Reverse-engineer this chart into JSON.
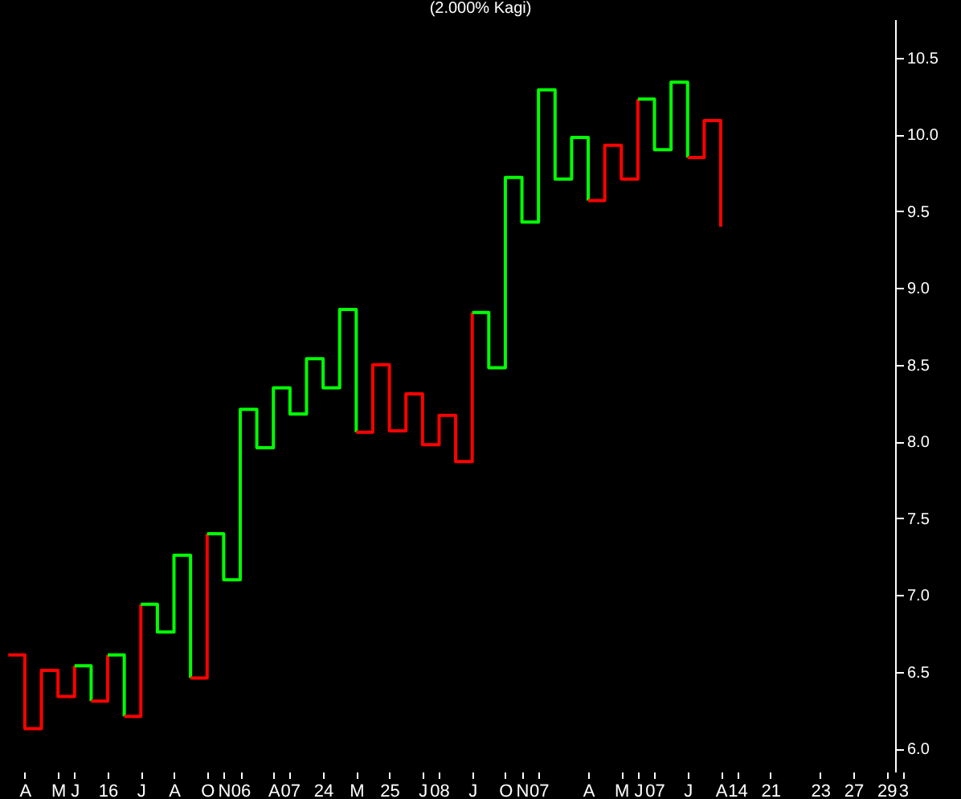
{
  "chart_data": {
    "type": "step",
    "title": "(2.000% Kagi)",
    "categories": [
      null,
      "A",
      null,
      "M",
      "J",
      null,
      "16",
      null,
      "J",
      null,
      "A",
      null,
      "O",
      "N",
      "06",
      null,
      "A",
      "07",
      null,
      "24",
      null,
      "M",
      null,
      "25",
      null,
      "J",
      "08",
      null,
      "J",
      null,
      "O",
      "N",
      "07",
      null,
      null,
      "A",
      null,
      "M",
      "J",
      "07",
      null,
      "J",
      null,
      "A",
      "14",
      null,
      "21",
      null,
      null,
      "23",
      null,
      "27",
      null,
      "29",
      "3",
      null,
      null,
      null
    ],
    "series": [
      {
        "color": "#ff0000",
        "values": [
          6.61,
          6.13,
          6.51,
          6.34,
          6.54,
          null,
          null,
          null,
          null,
          null,
          null,
          null,
          null,
          null,
          null,
          null,
          null,
          null,
          null,
          null,
          null,
          null,
          null,
          null,
          null,
          null,
          null,
          null,
          null,
          null,
          null,
          null,
          null,
          null,
          null,
          null,
          null,
          null,
          null,
          null,
          null,
          null,
          null,
          null,
          null,
          null,
          null,
          null,
          null,
          null,
          null,
          null,
          null,
          null,
          null,
          null,
          null,
          null
        ]
      },
      {
        "color": "#00ff00",
        "values": [
          null,
          null,
          null,
          null,
          6.54,
          6.31,
          null,
          null,
          null,
          null,
          null,
          null,
          null,
          null,
          null,
          null,
          null,
          null,
          null,
          null,
          null,
          null,
          null,
          null,
          null,
          null,
          null,
          null,
          null,
          null,
          null,
          null,
          null,
          null,
          null,
          null,
          null,
          null,
          null,
          null,
          null,
          null,
          null,
          null,
          null,
          null,
          null,
          null,
          null,
          null,
          null,
          null,
          null,
          null,
          null,
          null,
          null,
          null
        ]
      },
      {
        "color": "#ff0000",
        "values": [
          null,
          null,
          null,
          null,
          null,
          6.31,
          6.61,
          null,
          null,
          null,
          null,
          null,
          null,
          null,
          null,
          null,
          null,
          null,
          null,
          null,
          null,
          null,
          null,
          null,
          null,
          null,
          null,
          null,
          null,
          null,
          null,
          null,
          null,
          null,
          null,
          null,
          null,
          null,
          null,
          null,
          null,
          null,
          null,
          null,
          null,
          null,
          null,
          null,
          null,
          null,
          null,
          null,
          null,
          null,
          null,
          null,
          null,
          null
        ]
      },
      {
        "color": "#00ff00",
        "values": [
          null,
          null,
          null,
          null,
          null,
          null,
          6.61,
          6.21,
          null,
          null,
          null,
          null,
          null,
          null,
          null,
          null,
          null,
          null,
          null,
          null,
          null,
          null,
          null,
          null,
          null,
          null,
          null,
          null,
          null,
          null,
          null,
          null,
          null,
          null,
          null,
          null,
          null,
          null,
          null,
          null,
          null,
          null,
          null,
          null,
          null,
          null,
          null,
          null,
          null,
          null,
          null,
          null,
          null,
          null,
          null,
          null,
          null,
          null
        ]
      },
      {
        "color": "#ff0000",
        "values": [
          null,
          null,
          null,
          null,
          null,
          null,
          null,
          6.21,
          6.94,
          null,
          null,
          null,
          null,
          null,
          null,
          null,
          null,
          null,
          null,
          null,
          null,
          null,
          null,
          null,
          null,
          null,
          null,
          null,
          null,
          null,
          null,
          null,
          null,
          null,
          null,
          null,
          null,
          null,
          null,
          null,
          null,
          null,
          null,
          null,
          null,
          null,
          null,
          null,
          null,
          null,
          null,
          null,
          null,
          null,
          null,
          null,
          null,
          null
        ]
      },
      {
        "color": "#00ff00",
        "values": [
          null,
          null,
          null,
          null,
          null,
          null,
          null,
          null,
          6.94,
          6.76,
          7.26,
          6.46,
          null,
          null,
          null,
          null,
          null,
          null,
          null,
          null,
          null,
          null,
          null,
          null,
          null,
          null,
          null,
          null,
          null,
          null,
          null,
          null,
          null,
          null,
          null,
          null,
          null,
          null,
          null,
          null,
          null,
          null,
          null,
          null,
          null,
          null,
          null,
          null,
          null,
          null,
          null,
          null,
          null,
          null,
          null,
          null,
          null,
          null
        ]
      },
      {
        "color": "#ff0000",
        "values": [
          null,
          null,
          null,
          null,
          null,
          null,
          null,
          null,
          null,
          null,
          null,
          6.46,
          7.4,
          null,
          null,
          null,
          null,
          null,
          null,
          null,
          null,
          null,
          null,
          null,
          null,
          null,
          null,
          null,
          null,
          null,
          null,
          null,
          null,
          null,
          null,
          null,
          null,
          null,
          null,
          null,
          null,
          null,
          null,
          null,
          null,
          null,
          null,
          null,
          null,
          null,
          null,
          null,
          null,
          null,
          null,
          null,
          null,
          null
        ]
      },
      {
        "color": "#00ff00",
        "values": [
          null,
          null,
          null,
          null,
          null,
          null,
          null,
          null,
          null,
          null,
          null,
          null,
          7.4,
          7.1,
          8.21,
          7.96,
          8.35,
          8.18,
          8.54,
          8.35,
          8.86,
          8.06,
          null,
          null,
          null,
          null,
          null,
          null,
          null,
          null,
          null,
          null,
          null,
          null,
          null,
          null,
          null,
          null,
          null,
          null,
          null,
          null,
          null,
          null,
          null,
          null,
          null,
          null,
          null,
          null,
          null,
          null,
          null,
          null,
          null,
          null,
          null,
          null
        ]
      },
      {
        "color": "#ff0000",
        "values": [
          null,
          null,
          null,
          null,
          null,
          null,
          null,
          null,
          null,
          null,
          null,
          null,
          null,
          null,
          null,
          null,
          null,
          null,
          null,
          null,
          null,
          8.06,
          8.5,
          8.07,
          8.31,
          7.98,
          8.17,
          7.87,
          8.84,
          null,
          null,
          null,
          null,
          null,
          null,
          null,
          null,
          null,
          null,
          null,
          null,
          null,
          null,
          null,
          null,
          null,
          null,
          null,
          null,
          null,
          null,
          null,
          null,
          null,
          null,
          null,
          null,
          null
        ]
      },
      {
        "color": "#00ff00",
        "values": [
          null,
          null,
          null,
          null,
          null,
          null,
          null,
          null,
          null,
          null,
          null,
          null,
          null,
          null,
          null,
          null,
          null,
          null,
          null,
          null,
          null,
          null,
          null,
          null,
          null,
          null,
          null,
          null,
          8.84,
          8.48,
          9.72,
          9.43,
          10.29,
          9.71,
          9.98,
          9.57,
          null,
          null,
          null,
          null,
          null,
          null,
          null,
          null,
          null,
          null,
          null,
          null,
          null,
          null,
          null,
          null,
          null,
          null,
          null,
          null,
          null,
          null
        ]
      },
      {
        "color": "#ff0000",
        "values": [
          null,
          null,
          null,
          null,
          null,
          null,
          null,
          null,
          null,
          null,
          null,
          null,
          null,
          null,
          null,
          null,
          null,
          null,
          null,
          null,
          null,
          null,
          null,
          null,
          null,
          null,
          null,
          null,
          null,
          null,
          null,
          null,
          null,
          null,
          null,
          9.57,
          9.93,
          9.71,
          10.23,
          null,
          null,
          null,
          null,
          null,
          null,
          null,
          null,
          null,
          null,
          null,
          null,
          null,
          null,
          null,
          null,
          null,
          null,
          null
        ]
      },
      {
        "color": "#00ff00",
        "values": [
          null,
          null,
          null,
          null,
          null,
          null,
          null,
          null,
          null,
          null,
          null,
          null,
          null,
          null,
          null,
          null,
          null,
          null,
          null,
          null,
          null,
          null,
          null,
          null,
          null,
          null,
          null,
          null,
          null,
          null,
          null,
          null,
          null,
          null,
          null,
          null,
          null,
          null,
          10.23,
          9.9,
          10.34,
          9.85,
          null,
          null,
          null,
          null,
          null,
          null,
          null,
          null,
          null,
          null,
          null,
          null,
          null,
          null,
          null,
          null
        ]
      },
      {
        "color": "#ff0000",
        "values": [
          null,
          null,
          null,
          null,
          null,
          null,
          null,
          null,
          null,
          null,
          null,
          null,
          null,
          null,
          null,
          null,
          null,
          null,
          null,
          null,
          null,
          null,
          null,
          null,
          null,
          null,
          null,
          null,
          null,
          null,
          null,
          null,
          null,
          null,
          null,
          null,
          null,
          null,
          null,
          null,
          null,
          9.85,
          10.09,
          9.4,
          null,
          null,
          null,
          null,
          null,
          null,
          null,
          null,
          null,
          null,
          null,
          null,
          null,
          null
        ]
      }
    ],
    "ylim": [
      5.85,
      10.75
    ],
    "yticks": [
      {
        "value": 6.0,
        "label": "6.0"
      },
      {
        "value": 6.5,
        "label": "6.5"
      },
      {
        "value": 7.0,
        "label": "7.0"
      },
      {
        "value": 7.5,
        "label": "7.5"
      },
      {
        "value": 8.0,
        "label": "8.0"
      },
      {
        "value": 8.5,
        "label": "8.5"
      },
      {
        "value": 9.0,
        "label": "9.0"
      },
      {
        "value": 9.5,
        "label": "9.5"
      },
      {
        "value": 10.0,
        "label": "10.0"
      },
      {
        "value": 10.5,
        "label": "10.5"
      }
    ],
    "grid": false
  }
}
